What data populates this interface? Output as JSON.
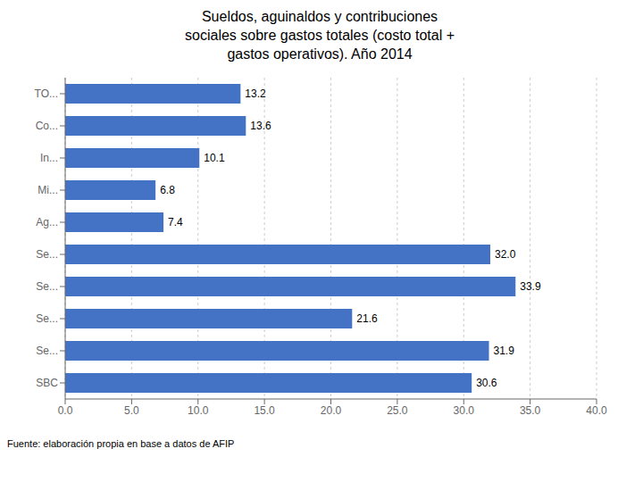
{
  "chart_data": {
    "type": "bar",
    "orientation": "horizontal",
    "title": "Sueldos, aguinaldos y contribuciones\nsociales sobre gastos totales (costo total +\ngastos operativos). Año 2014",
    "categories": [
      "TO...",
      "Co...",
      "In...",
      "Mi...",
      "Ag...",
      "Se...",
      "Se...",
      "Se...",
      "Se...",
      "SBC"
    ],
    "values": [
      13.2,
      13.6,
      10.1,
      6.8,
      7.4,
      32.0,
      33.9,
      21.6,
      31.9,
      30.6
    ],
    "value_labels": [
      "13.2",
      "13.6",
      "10.1",
      "6.8",
      "7.4",
      "32.0",
      "33.9",
      "21.6",
      "31.9",
      "30.6"
    ],
    "data_labels": true,
    "color": "#4472C4",
    "xlim": [
      0,
      40
    ],
    "xticks": [
      {
        "value": 0,
        "label": "0.0"
      },
      {
        "value": 5,
        "label": "5.0"
      },
      {
        "value": 10,
        "label": "10.0"
      },
      {
        "value": 15,
        "label": "15.0"
      },
      {
        "value": 20,
        "label": "20.0"
      },
      {
        "value": 25,
        "label": "25.0"
      },
      {
        "value": 30,
        "label": "30.0"
      },
      {
        "value": 35,
        "label": "35.0"
      },
      {
        "value": 40,
        "label": "40.0"
      }
    ],
    "grid": true,
    "annotations": [
      "Fuente: elaboración propia en base a datos de AFIP"
    ]
  }
}
